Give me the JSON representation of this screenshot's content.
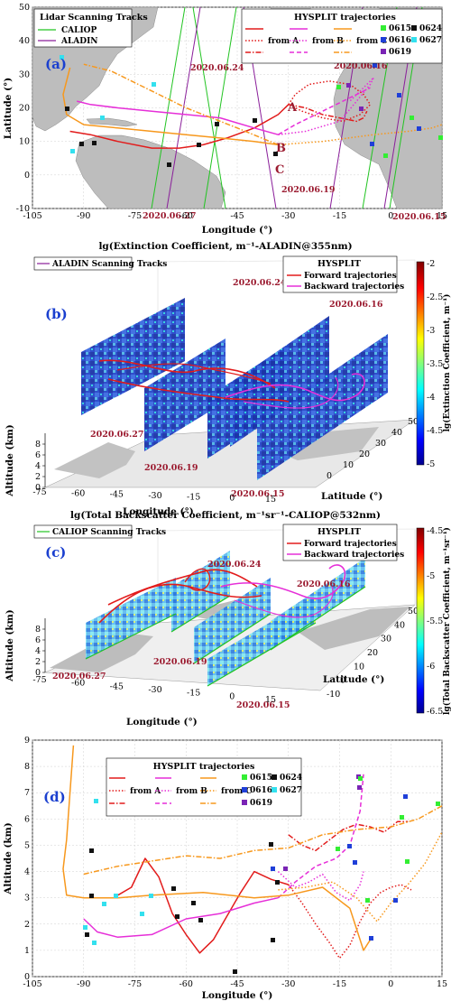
{
  "colors": {
    "land": "#bdbdbd",
    "red": "#e21b1b",
    "magenta": "#e62fd8",
    "orange": "#f7981d",
    "caliop": "#22c422",
    "aladin": "#8a1f9a",
    "date": "#9b1b30",
    "letter": "#1a3fcf",
    "m0615": "#33ee33",
    "m0616": "#1f3fd8",
    "m0619": "#7a24b5",
    "m0624": "#111111",
    "m0627": "#33e0ee"
  },
  "panel_a": {
    "letter": "(a)",
    "xlabel": "Longitude (°)",
    "ylabel": "Latitude (°)",
    "xticks": [
      "-105",
      "-90",
      "-75",
      "-60",
      "-45",
      "-30",
      "-15",
      "0",
      "15"
    ],
    "yticks": [
      "-10",
      "0",
      "10",
      "20",
      "30",
      "40",
      "50"
    ],
    "dates": [
      "2020.06.24",
      "2020.06.16",
      "2020.06.19",
      "2020.06.27",
      "2020.06.15"
    ],
    "points": [
      "A",
      "B",
      "C"
    ],
    "tracks_legend": {
      "title": "Lidar Scanning Tracks",
      "items": [
        "CALIOP",
        "ALADIN"
      ]
    },
    "hysplit_legend": {
      "title": "HYSPLIT trajectories",
      "rows": [
        "from A",
        "from B",
        "from C"
      ],
      "markers": [
        "0615",
        "0624",
        "0616",
        "0627",
        "0619"
      ]
    }
  },
  "panel_b": {
    "letter": "(b)",
    "title": "lg(Extinction Coefficient, m⁻¹-ALADIN@355nm)",
    "track_legend": "ALADIN Scanning Tracks",
    "hysplit": {
      "title": "HYSPLIT",
      "forward": "Forward trajectories",
      "backward": "Backward trajectories"
    },
    "dates": [
      "2020.06.24",
      "2020.06.16",
      "2020.06.27",
      "2020.06.19",
      "2020.06.15"
    ],
    "zlabel": "Altitude (km)",
    "xlabel": "Longitude (°)",
    "ylabel": "Latitude (°)",
    "zticks": [
      "0",
      "2",
      "4",
      "6",
      "8"
    ],
    "lon_ticks": [
      "-75",
      "-60",
      "-45",
      "-30",
      "-15",
      "0",
      "15"
    ],
    "lat_ticks": [
      "0",
      "10",
      "20",
      "30",
      "40",
      "50"
    ],
    "colorbar": {
      "label": "lg(Extinction Coefficient, m⁻¹)",
      "ticks": [
        "-2",
        "-2.5",
        "-3",
        "-3.5",
        "-4",
        "-4.5",
        "-5"
      ]
    }
  },
  "panel_c": {
    "letter": "(c)",
    "title": "lg(Total Backscatter Coefficient, m⁻¹sr⁻¹-CALIOP@532nm)",
    "track_legend": "CALIOP Scanning Tracks",
    "hysplit": {
      "title": "HYSPLIT",
      "forward": "Forward trajectories",
      "backward": "Backward trajectories"
    },
    "dates": [
      "2020.06.24",
      "2020.06.16",
      "2020.06.27",
      "2020.06.19",
      "2020.06.15"
    ],
    "zlabel": "Altitude (km)",
    "xlabel": "Longitude (°)",
    "ylabel": "Latitude (°)",
    "zticks": [
      "0",
      "2",
      "4",
      "6",
      "8"
    ],
    "lon_ticks": [
      "-75",
      "-60",
      "-45",
      "-30",
      "-15",
      "0",
      "15"
    ],
    "lat_ticks": [
      "-10",
      "0",
      "10",
      "20",
      "30",
      "40",
      "50"
    ],
    "colorbar": {
      "label": "lg(Total Backscatter Coefficient, m⁻¹sr⁻¹)",
      "ticks": [
        "-4.5",
        "-5",
        "-5.5",
        "-6",
        "-6.5"
      ]
    }
  },
  "panel_d": {
    "letter": "(d)",
    "xlabel": "Longitude (°)",
    "ylabel": "Altitude (km)",
    "xticks": [
      "-105",
      "-90",
      "-75",
      "-60",
      "-45",
      "-30",
      "-15",
      "0",
      "15"
    ],
    "yticks": [
      "0",
      "1",
      "2",
      "3",
      "4",
      "5",
      "6",
      "7",
      "8",
      "9"
    ],
    "hysplit_legend": {
      "title": "HYSPLIT trajectories",
      "rows": [
        "from A",
        "from B",
        "from C"
      ],
      "markers": [
        "0615",
        "0624",
        "0616",
        "0627",
        "0619"
      ]
    }
  },
  "chart_data": [
    {
      "type": "line",
      "panel": "a",
      "xlabel": "Longitude (°)",
      "ylabel": "Latitude (°)",
      "xlim": [
        -105,
        15
      ],
      "ylim": [
        -10,
        50
      ],
      "grid": true,
      "source_points": {
        "A": [
          -30,
          21
        ],
        "B": [
          -33,
          12
        ],
        "C": [
          -33,
          9
        ]
      },
      "series": [
        {
          "name": "from A",
          "style": "solid",
          "color": "red",
          "x": [
            -30,
            -33,
            -40,
            -48,
            -55,
            -62,
            -70,
            -80,
            -88,
            -94
          ],
          "y": [
            21,
            18,
            14,
            11,
            9,
            8,
            8,
            10,
            12,
            13
          ]
        },
        {
          "name": "from A",
          "style": "dotted",
          "color": "red",
          "x": [
            -30,
            -28,
            -24,
            -18,
            -12,
            -8,
            -6,
            -9,
            -14,
            -20,
            -26,
            -30
          ],
          "y": [
            21,
            24,
            27,
            28,
            27,
            24,
            21,
            18,
            16,
            17,
            19,
            21
          ]
        },
        {
          "name": "from A",
          "style": "dashdot",
          "color": "red",
          "x": [
            -30,
            -25,
            -20,
            -15,
            -10,
            -8,
            -7
          ],
          "y": [
            21,
            20,
            18,
            17,
            16,
            17,
            19
          ]
        },
        {
          "name": "from B",
          "style": "solid",
          "color": "magenta",
          "x": [
            -33,
            -40,
            -50,
            -60,
            -70,
            -80,
            -88,
            -92
          ],
          "y": [
            12,
            14,
            17,
            18,
            19,
            20,
            21,
            22
          ]
        },
        {
          "name": "from B",
          "style": "dotted",
          "color": "magenta",
          "x": [
            -33,
            -25,
            -15,
            -10,
            -6,
            -5,
            -8,
            -12
          ],
          "y": [
            12,
            13,
            16,
            22,
            27,
            29,
            26,
            22
          ]
        },
        {
          "name": "from B",
          "style": "dashed",
          "color": "magenta",
          "x": [
            -33,
            -28,
            -20,
            -12,
            -6
          ],
          "y": [
            12,
            15,
            19,
            23,
            26
          ]
        },
        {
          "name": "from C",
          "style": "solid",
          "color": "orange",
          "x": [
            -33,
            -40,
            -50,
            -60,
            -70,
            -80,
            -90,
            -95,
            -96,
            -94
          ],
          "y": [
            9,
            10,
            11,
            12,
            13,
            14,
            15,
            18,
            24,
            32
          ]
        },
        {
          "name": "from C",
          "style": "dotted",
          "color": "orange",
          "x": [
            -33,
            -20,
            -5,
            5,
            12,
            15
          ],
          "y": [
            9,
            10,
            12,
            13,
            14,
            15
          ]
        },
        {
          "name": "from C",
          "style": "dashdot",
          "color": "orange",
          "x": [
            -33,
            -45,
            -60,
            -72,
            -82,
            -90
          ],
          "y": [
            9,
            14,
            20,
            26,
            31,
            33
          ]
        }
      ]
    },
    {
      "type": "line",
      "panel": "d",
      "xlabel": "Longitude (°)",
      "ylabel": "Altitude (km)",
      "xlim": [
        -105,
        15
      ],
      "ylim": [
        0,
        9
      ],
      "grid": true,
      "series": [
        {
          "name": "from A",
          "style": "solid",
          "color": "red",
          "x": [
            -30,
            -35,
            -40,
            -44,
            -48,
            -52,
            -56,
            -60,
            -64,
            -68,
            -72,
            -76,
            -80
          ],
          "y": [
            3.5,
            3.7,
            4.0,
            3.2,
            2.3,
            1.4,
            0.9,
            1.6,
            2.4,
            3.8,
            4.5,
            3.4,
            3.1
          ]
        },
        {
          "name": "from A",
          "style": "dotted",
          "color": "red",
          "x": [
            -30,
            -26,
            -22,
            -18,
            -15,
            -12,
            -9,
            -6,
            -3,
            0,
            3,
            6
          ],
          "y": [
            3.5,
            2.8,
            2.0,
            1.3,
            0.7,
            1.2,
            2.1,
            2.8,
            3.2,
            3.4,
            3.5,
            3.3
          ]
        },
        {
          "name": "from A",
          "style": "dashdot",
          "color": "red",
          "x": [
            -30,
            -26,
            -22,
            -18,
            -14,
            -10,
            -6,
            -2,
            2,
            5
          ],
          "y": [
            5.4,
            5.0,
            4.8,
            5.2,
            5.6,
            5.8,
            5.7,
            5.5,
            5.9,
            5.9
          ]
        },
        {
          "name": "from B",
          "style": "solid",
          "color": "magenta",
          "x": [
            -33,
            -40,
            -50,
            -60,
            -70,
            -80,
            -86,
            -90
          ],
          "y": [
            3.0,
            2.8,
            2.4,
            2.2,
            1.6,
            1.5,
            1.7,
            2.2
          ]
        },
        {
          "name": "from B",
          "style": "dotted",
          "color": "magenta",
          "x": [
            -33,
            -28,
            -24,
            -20,
            -16,
            -12,
            -9,
            -8
          ],
          "y": [
            4.0,
            3.4,
            3.6,
            3.9,
            3.2,
            2.9,
            3.5,
            4.0
          ]
        },
        {
          "name": "from B",
          "style": "dashed",
          "color": "magenta",
          "x": [
            -33,
            -28,
            -22,
            -16,
            -12,
            -9,
            -8
          ],
          "y": [
            3.0,
            3.6,
            4.2,
            4.5,
            5.0,
            6.3,
            7.7
          ]
        },
        {
          "name": "from C",
          "style": "solid",
          "color": "orange",
          "x": [
            -93,
            -94,
            -95,
            -96,
            -95,
            -90,
            -80,
            -70,
            -55,
            -40,
            -30,
            -20,
            -12,
            -8,
            -6
          ],
          "y": [
            8.8,
            7.0,
            5.2,
            4.1,
            3.1,
            3.0,
            3.0,
            3.1,
            3.2,
            3.0,
            3.1,
            3.4,
            2.6,
            1.0,
            1.4
          ]
        },
        {
          "name": "from C",
          "style": "dotted",
          "color": "orange",
          "x": [
            -33,
            -25,
            -17,
            -10,
            -4,
            0,
            5,
            10,
            15
          ],
          "y": [
            3.3,
            3.4,
            3.6,
            3.0,
            2.1,
            2.8,
            3.5,
            4.3,
            5.5
          ]
        },
        {
          "name": "from C",
          "style": "dashdot",
          "color": "orange",
          "x": [
            -90,
            -80,
            -70,
            -60,
            -50,
            -40,
            -30,
            -20,
            -10,
            0,
            8,
            15
          ],
          "y": [
            3.9,
            4.2,
            4.4,
            4.6,
            4.5,
            4.8,
            4.9,
            5.4,
            5.6,
            5.7,
            6.0,
            6.5
          ]
        }
      ]
    }
  ]
}
